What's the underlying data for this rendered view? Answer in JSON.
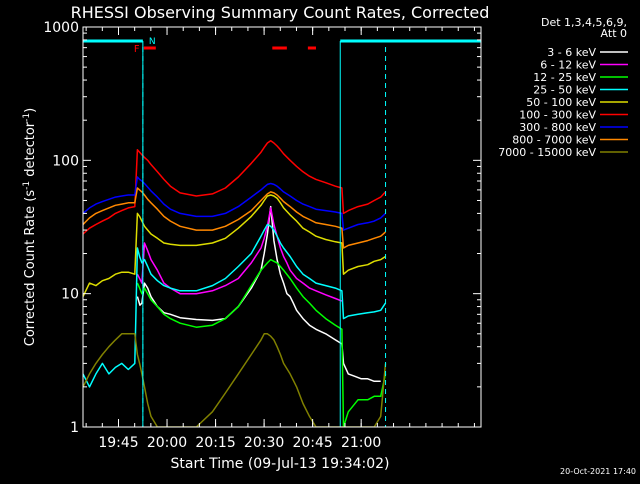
{
  "chart_data": {
    "type": "line",
    "title": "RHESSI Observing Summary Count Rates, Corrected",
    "xlabel": "Start Time (09-Jul-13 19:34:02)",
    "ylabel_parts": [
      "Corrected Count Rate (s",
      "-1",
      " detector",
      "-1",
      ")"
    ],
    "yscale": "log",
    "xlim_minutes": [
      0,
      123
    ],
    "ylim": [
      1,
      1000
    ],
    "x_ticks": [
      {
        "minute": 10.97,
        "label": "19:45"
      },
      {
        "minute": 25.97,
        "label": "20:00"
      },
      {
        "minute": 40.97,
        "label": "20:15"
      },
      {
        "minute": 55.97,
        "label": "20:30"
      },
      {
        "minute": 70.97,
        "label": "20:45"
      },
      {
        "minute": 85.97,
        "label": "21:00"
      }
    ],
    "y_ticks": [
      {
        "value": 1,
        "label": "1"
      },
      {
        "value": 10,
        "label": "10"
      },
      {
        "value": 100,
        "label": "100"
      },
      {
        "value": 1000,
        "label": "1000"
      }
    ],
    "legend_header": [
      "Det 1,3,4,5,6,9,",
      "Att 0"
    ],
    "legend_placement": "right",
    "footer_date": "20-Oct-2021 17:40",
    "flags": {
      "night_label": "N",
      "flare_label": "F",
      "night_color": "#00ffff",
      "flare_color": "#ff0000",
      "night_intervals_minutes": [
        [
          0,
          18.5
        ],
        [
          79.5,
          123
        ]
      ],
      "flare_intervals_minutes": [
        [
          18.8,
          22.5
        ],
        [
          58.5,
          63.0
        ],
        [
          69.5,
          72.0
        ]
      ],
      "dashed_lines_minutes": [
        18.5,
        93.5
      ]
    },
    "series": [
      {
        "name": "3 - 6 keV",
        "color": "#ffffff",
        "x": [
          0,
          1,
          2,
          3,
          4,
          5,
          6,
          7,
          8,
          9,
          10,
          11,
          12,
          13,
          14,
          15,
          16,
          16.8,
          17.6,
          18.2,
          19,
          20,
          21,
          23,
          25,
          27,
          30,
          35,
          40,
          44,
          48,
          52,
          55,
          56,
          57,
          58,
          59,
          60,
          61,
          62,
          63,
          64,
          65,
          66,
          68,
          70,
          72,
          75,
          78,
          80,
          80.5,
          82,
          84,
          86,
          88,
          90,
          92,
          93.5
        ],
        "values": [
          null,
          null,
          null,
          null,
          null,
          null,
          null,
          null,
          null,
          null,
          null,
          null,
          null,
          null,
          null,
          null,
          null,
          9.5,
          8.2,
          8.5,
          12,
          11,
          9.5,
          8,
          7.2,
          7,
          6.6,
          6.4,
          6.3,
          6.5,
          8,
          11,
          15,
          20,
          28,
          45,
          25,
          18,
          14,
          12,
          10,
          9.5,
          8.5,
          7.5,
          6.5,
          5.8,
          5.4,
          5,
          4.5,
          4.2,
          3,
          2.5,
          2.4,
          2.3,
          2.3,
          2.2,
          2.2,
          null
        ]
      },
      {
        "name": "6 - 12 keV",
        "color": "#ff00ff",
        "x": [
          0,
          16,
          16.8,
          17.5,
          18.2,
          19,
          20,
          21,
          23,
          25,
          27,
          30,
          35,
          40,
          44,
          48,
          52,
          55,
          56,
          57,
          58,
          59,
          60,
          61,
          62,
          63,
          64,
          66,
          68,
          70,
          72,
          75,
          78,
          80
        ],
        "values": [
          null,
          null,
          14,
          13,
          12,
          24,
          21,
          18,
          15,
          12,
          11,
          10,
          10,
          10.5,
          11.5,
          13,
          17,
          22,
          26,
          32,
          44,
          33,
          27,
          22,
          19,
          17,
          15,
          13,
          12,
          11,
          10.5,
          9.8,
          9.2,
          8.8
        ]
      },
      {
        "name": "12 - 25 keV",
        "color": "#00ff00",
        "x": [
          0,
          16,
          16.8,
          17.5,
          18.2,
          19,
          20,
          21,
          23,
          25,
          27,
          30,
          35,
          40,
          44,
          48,
          52,
          55,
          56,
          57,
          58,
          59,
          60,
          61,
          62,
          64,
          66,
          68,
          70,
          72,
          75,
          78,
          80,
          80.5,
          82,
          85,
          88,
          90,
          92,
          93.5
        ],
        "values": [
          null,
          null,
          12,
          11,
          10,
          11,
          10,
          9,
          8,
          7,
          6.5,
          6,
          5.6,
          5.8,
          6.5,
          8,
          11.5,
          15,
          16,
          17,
          18,
          17.5,
          17,
          16,
          15,
          13,
          11,
          9.5,
          8.5,
          7.5,
          6.5,
          5.8,
          5.4,
          1,
          1.3,
          1.6,
          1.6,
          1.7,
          1.7,
          2.5
        ]
      },
      {
        "name": "25 - 50 keV",
        "color": "#00ffff",
        "x": [
          0,
          2,
          4,
          6,
          8,
          10,
          12,
          14,
          16,
          16.8,
          17.5,
          18.2,
          19,
          20,
          21,
          23,
          25,
          27,
          30,
          35,
          40,
          44,
          48,
          52,
          55,
          56,
          57,
          58,
          59,
          60,
          61,
          62,
          64,
          66,
          68,
          70,
          72,
          75,
          78,
          80,
          80.5,
          82,
          85,
          88,
          90,
          92,
          93.5
        ],
        "values": [
          2.5,
          2,
          2.5,
          3,
          2.5,
          2.8,
          3,
          2.7,
          3,
          22,
          19,
          17,
          18,
          16,
          14,
          12.5,
          11.5,
          11,
          10.5,
          10.5,
          11.5,
          13,
          16,
          20,
          27,
          30,
          33,
          32,
          30,
          27,
          24,
          22,
          19,
          16,
          14,
          13,
          12,
          11.5,
          11,
          10.5,
          6.5,
          6.8,
          7,
          7.2,
          7.3,
          7.5,
          8.5
        ]
      },
      {
        "name": "50 - 100 keV",
        "color": "#dddd00",
        "x": [
          0,
          2,
          4,
          6,
          8,
          10,
          12,
          14,
          16,
          16.8,
          17.5,
          18.2,
          19,
          20,
          21,
          23,
          25,
          27,
          30,
          35,
          40,
          44,
          48,
          52,
          55,
          56,
          57,
          58,
          59,
          60,
          61,
          62,
          64,
          66,
          68,
          70,
          72,
          75,
          78,
          80,
          80.5,
          82,
          85,
          88,
          90,
          92,
          93.5
        ],
        "values": [
          9.5,
          12,
          11.5,
          12.5,
          13,
          14,
          14.5,
          14.5,
          14,
          40,
          38,
          35,
          32,
          30,
          28,
          26,
          24,
          23.5,
          23,
          23,
          24,
          26,
          31,
          38,
          46,
          50,
          54,
          55,
          54,
          52,
          48,
          44,
          39,
          35,
          31,
          29,
          27,
          25.5,
          24.5,
          24,
          14,
          15,
          16,
          16.5,
          17.5,
          18,
          19
        ]
      },
      {
        "name": "100 - 300 keV",
        "color": "#ff0000",
        "x": [
          0,
          2,
          4,
          6,
          8,
          10,
          12,
          14,
          16,
          16.8,
          17.5,
          18.2,
          19,
          20,
          21,
          23,
          25,
          27,
          30,
          35,
          40,
          44,
          48,
          52,
          55,
          56,
          57,
          58,
          59,
          60,
          61,
          62,
          64,
          66,
          68,
          70,
          72,
          75,
          78,
          80,
          80.5,
          82,
          85,
          88,
          90,
          92,
          93.5
        ],
        "values": [
          28,
          31,
          33,
          35,
          37,
          40,
          42,
          44,
          45,
          120,
          115,
          110,
          105,
          100,
          93,
          82,
          72,
          64,
          57,
          54,
          56,
          62,
          75,
          95,
          115,
          125,
          135,
          140,
          135,
          128,
          120,
          112,
          100,
          90,
          82,
          76,
          72,
          68,
          64,
          62,
          40,
          42,
          45,
          47,
          50,
          53,
          58
        ]
      },
      {
        "name": "300 - 800 keV",
        "color": "#0000ff",
        "x": [
          0,
          2,
          4,
          6,
          8,
          10,
          12,
          14,
          16,
          16.8,
          17.5,
          18.2,
          19,
          20,
          21,
          23,
          25,
          27,
          30,
          35,
          40,
          44,
          48,
          52,
          55,
          56,
          57,
          58,
          59,
          60,
          61,
          62,
          64,
          66,
          68,
          70,
          72,
          75,
          78,
          80,
          80.5,
          82,
          85,
          88,
          90,
          92,
          93.5
        ],
        "values": [
          40,
          44,
          47,
          49,
          51,
          53,
          54,
          55,
          55,
          75,
          72,
          70,
          67,
          63,
          59,
          53,
          47,
          43,
          40,
          38,
          38,
          40,
          45,
          53,
          60,
          63,
          66,
          67,
          66,
          64,
          61,
          58,
          54,
          50,
          47,
          45,
          43,
          42,
          41,
          40,
          30,
          31,
          33,
          34,
          35,
          37,
          40
        ]
      },
      {
        "name": "800 - 7000 keV",
        "color": "#ff8800",
        "x": [
          0,
          2,
          4,
          6,
          8,
          10,
          12,
          14,
          16,
          16.8,
          17.5,
          18.2,
          19,
          20,
          21,
          23,
          25,
          27,
          30,
          35,
          40,
          44,
          48,
          52,
          55,
          56,
          57,
          58,
          59,
          60,
          61,
          62,
          64,
          66,
          68,
          70,
          72,
          75,
          78,
          80,
          80.5,
          82,
          85,
          88,
          90,
          92,
          93.5
        ],
        "values": [
          33,
          37,
          40,
          42,
          44,
          46,
          47,
          48,
          48,
          62,
          60,
          58,
          55,
          51,
          48,
          43,
          38,
          35,
          32,
          30,
          30,
          32,
          36,
          42,
          50,
          53,
          56,
          58,
          57,
          55,
          52,
          49,
          45,
          41,
          38,
          36,
          34,
          33,
          32,
          31,
          22,
          23,
          24,
          25,
          26,
          27,
          29
        ]
      },
      {
        "name": "7000 - 15000 keV",
        "color": "#808000",
        "x": [
          0,
          2,
          4,
          6,
          8,
          10,
          12,
          14,
          16,
          16.8,
          17.5,
          18.2,
          19,
          20,
          21,
          23,
          25,
          27,
          30,
          35,
          40,
          44,
          48,
          52,
          55,
          56,
          57,
          58,
          59,
          60,
          61,
          62,
          64,
          66,
          68,
          70,
          72,
          75,
          78,
          80,
          80.5,
          82,
          85,
          88,
          90,
          92,
          93.5
        ],
        "values": [
          2,
          2.5,
          3,
          3.5,
          4,
          4.5,
          5,
          5,
          5,
          3.5,
          3,
          2.5,
          2,
          1.5,
          1.2,
          1,
          1,
          1,
          1,
          1,
          1.3,
          1.8,
          2.5,
          3.5,
          4.5,
          5,
          5,
          4.8,
          4.5,
          4,
          3.5,
          3,
          2.5,
          2,
          1.5,
          1.2,
          1,
          1,
          1,
          1,
          1,
          1,
          1,
          1,
          1,
          1.2,
          3
        ]
      }
    ]
  }
}
